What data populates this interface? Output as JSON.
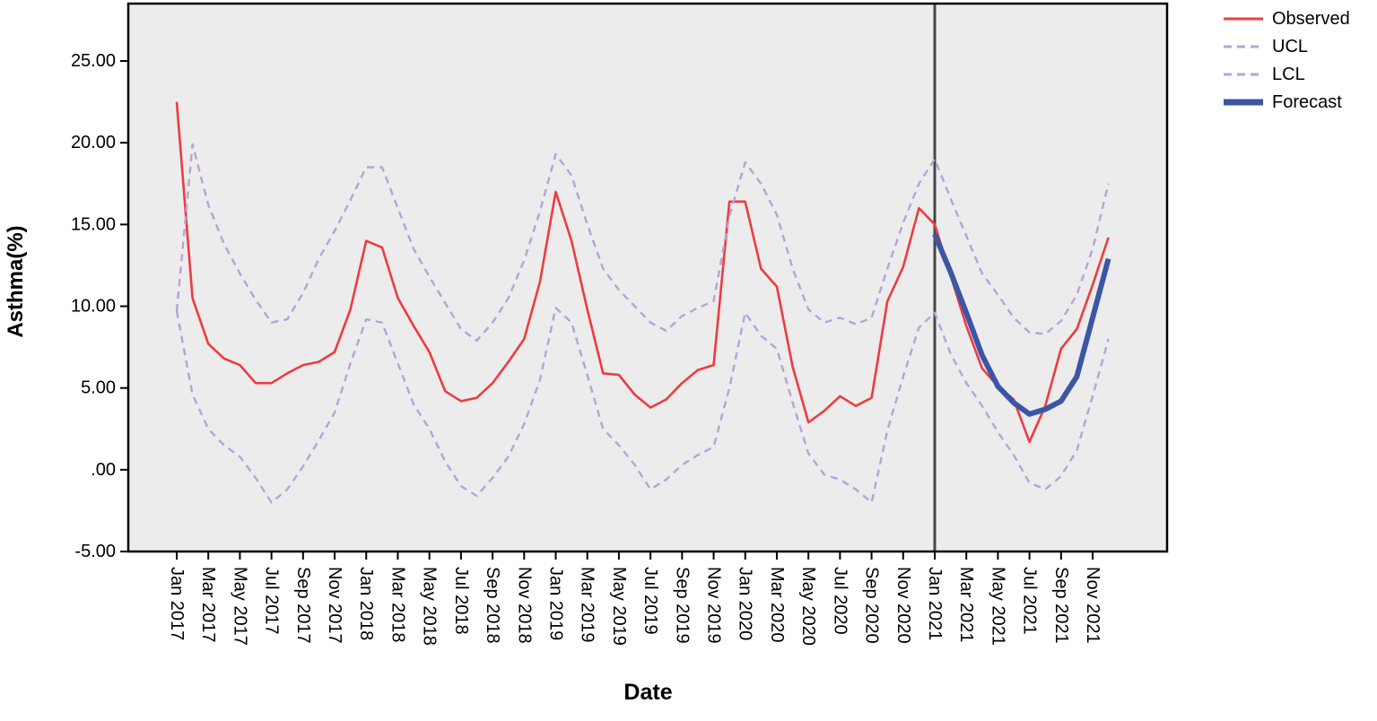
{
  "page": {
    "background": "#ffffff"
  },
  "axis": {
    "y_title": "Asthma(%)",
    "x_title": "Date",
    "ytick_labels": [
      "25.00",
      "20.00",
      "15.00",
      "10.00",
      "5.00",
      ".00",
      "-5.00"
    ],
    "ytick_values": [
      25,
      20,
      15,
      10,
      5,
      0,
      -5
    ]
  },
  "legend": {
    "items": [
      "Observed",
      "UCL",
      "LCL",
      "Forecast"
    ]
  },
  "chart_data": {
    "type": "line",
    "title": "",
    "xlabel": "Date",
    "ylabel": "Asthma(%)",
    "ylim": [
      -5,
      25
    ],
    "grid": false,
    "plot_bg": "#ececec",
    "frame_color": "#000000",
    "separator_color": "#474747",
    "separator_at": "Jan 2021",
    "legend_position": "top-right-outside",
    "xtick_labels": [
      "Jan 2017",
      "Mar 2017",
      "May 2017",
      "Jul 2017",
      "Sep 2017",
      "Nov 2017",
      "Jan 2018",
      "Mar 2018",
      "May 2018",
      "Jul 2018",
      "Sep 2018",
      "Nov 2018",
      "Jan 2019",
      "Mar 2019",
      "May 2019",
      "Jul 2019",
      "Sep 2019",
      "Nov 2019",
      "Jan 2020",
      "Mar 2020",
      "May 2020",
      "Jul 2020",
      "Sep 2020",
      "Nov 2020",
      "Jan 2021",
      "Mar 2021",
      "May 2021",
      "Jul 2021",
      "Sep 2021",
      "Nov 2021"
    ],
    "categories": [
      "Jan 2017",
      "Feb 2017",
      "Mar 2017",
      "Apr 2017",
      "May 2017",
      "Jun 2017",
      "Jul 2017",
      "Aug 2017",
      "Sep 2017",
      "Oct 2017",
      "Nov 2017",
      "Dec 2017",
      "Jan 2018",
      "Feb 2018",
      "Mar 2018",
      "Apr 2018",
      "May 2018",
      "Jun 2018",
      "Jul 2018",
      "Aug 2018",
      "Sep 2018",
      "Oct 2018",
      "Nov 2018",
      "Dec 2018",
      "Jan 2019",
      "Feb 2019",
      "Mar 2019",
      "Apr 2019",
      "May 2019",
      "Jun 2019",
      "Jul 2019",
      "Aug 2019",
      "Sep 2019",
      "Oct 2019",
      "Nov 2019",
      "Dec 2019",
      "Jan 2020",
      "Feb 2020",
      "Mar 2020",
      "Apr 2020",
      "May 2020",
      "Jun 2020",
      "Jul 2020",
      "Aug 2020",
      "Sep 2020",
      "Oct 2020",
      "Nov 2020",
      "Dec 2020",
      "Jan 2021",
      "Feb 2021",
      "Mar 2021",
      "Apr 2021",
      "May 2021",
      "Jun 2021",
      "Jul 2021",
      "Aug 2021",
      "Sep 2021",
      "Oct 2021",
      "Nov 2021",
      "Dec 2021"
    ],
    "series": [
      {
        "name": "Observed",
        "color": "#ee3b41",
        "style": "solid",
        "width": 2.6,
        "values": [
          22.5,
          10.5,
          7.7,
          6.8,
          6.4,
          5.3,
          5.3,
          5.9,
          6.4,
          6.6,
          7.2,
          9.8,
          14.0,
          13.6,
          10.5,
          8.8,
          7.2,
          4.8,
          4.2,
          4.4,
          5.3,
          6.6,
          8.0,
          11.5,
          17.0,
          14.0,
          9.8,
          5.9,
          5.8,
          4.6,
          3.8,
          4.3,
          5.3,
          6.1,
          6.4,
          16.4,
          16.4,
          12.3,
          11.2,
          6.3,
          2.9,
          3.6,
          4.5,
          3.9,
          4.4,
          10.3,
          12.4,
          16.0,
          15.0,
          11.9,
          8.8,
          6.2,
          5.1,
          4.3,
          1.7,
          3.9,
          7.4,
          8.6,
          11.3,
          14.2
        ]
      },
      {
        "name": "UCL",
        "color": "#b7a2d8",
        "style": "dashed",
        "width": 2.4,
        "values": [
          9.7,
          19.9,
          16.2,
          13.8,
          12.0,
          10.4,
          9.0,
          9.2,
          10.8,
          12.9,
          14.6,
          16.5,
          18.5,
          18.5,
          16.0,
          13.5,
          11.8,
          10.2,
          8.6,
          7.9,
          9.0,
          10.5,
          12.8,
          15.8,
          19.3,
          18.0,
          15.0,
          12.3,
          11.0,
          10.0,
          9.0,
          8.5,
          9.4,
          9.9,
          10.3,
          15.5,
          18.8,
          17.5,
          15.6,
          12.3,
          9.8,
          9.0,
          9.3,
          8.9,
          9.3,
          12.3,
          15.1,
          17.5,
          19.0,
          16.6,
          14.3,
          12.0,
          10.7,
          9.3,
          8.4,
          8.3,
          9.1,
          10.7,
          13.5,
          17.5
        ]
      },
      {
        "name": "LCL",
        "color": "#b7a2d8",
        "style": "dashed",
        "width": 2.4,
        "values": [
          9.7,
          4.6,
          2.5,
          1.5,
          0.8,
          -0.5,
          -2.0,
          -1.2,
          0.2,
          1.8,
          3.5,
          6.5,
          9.2,
          9.0,
          6.5,
          4.0,
          2.5,
          0.5,
          -1.0,
          -1.6,
          -0.5,
          0.8,
          2.8,
          5.5,
          9.9,
          9.0,
          5.8,
          2.5,
          1.5,
          0.3,
          -1.2,
          -0.6,
          0.3,
          0.9,
          1.4,
          5.0,
          9.6,
          8.2,
          7.4,
          4.1,
          1.0,
          -0.3,
          -0.6,
          -1.2,
          -2.0,
          2.4,
          5.7,
          8.7,
          9.6,
          7.1,
          5.3,
          3.9,
          2.3,
          0.9,
          -0.8,
          -1.2,
          -0.4,
          1.2,
          4.5,
          8.0
        ]
      },
      {
        "name": "Forecast",
        "color": "#3d55a5",
        "style": "solid",
        "width": 6,
        "values": [
          null,
          null,
          null,
          null,
          null,
          null,
          null,
          null,
          null,
          null,
          null,
          null,
          null,
          null,
          null,
          null,
          null,
          null,
          null,
          null,
          null,
          null,
          null,
          null,
          null,
          null,
          null,
          null,
          null,
          null,
          null,
          null,
          null,
          null,
          null,
          null,
          null,
          null,
          null,
          null,
          null,
          null,
          null,
          null,
          null,
          null,
          null,
          null,
          14.4,
          12.1,
          9.6,
          7.0,
          5.1,
          4.1,
          3.4,
          3.7,
          4.2,
          5.7,
          9.3,
          12.9
        ]
      }
    ]
  }
}
